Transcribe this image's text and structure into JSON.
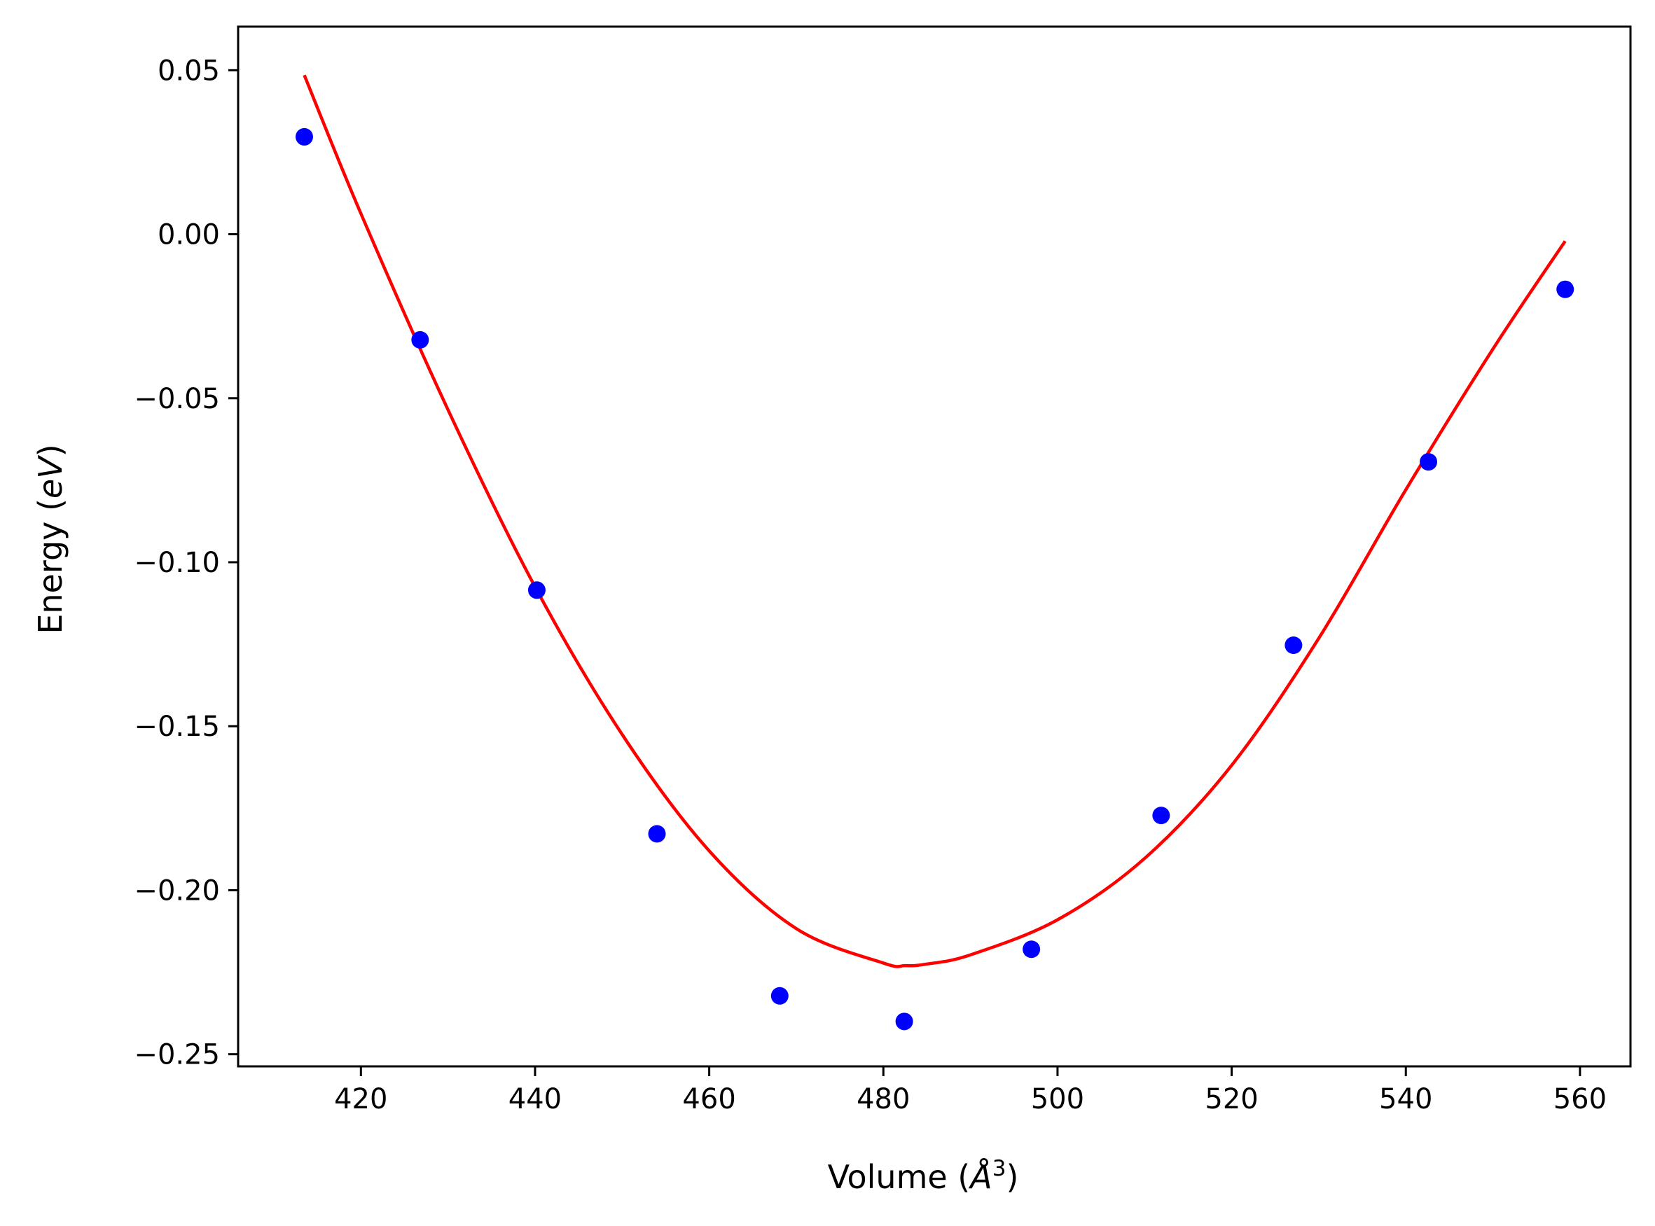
{
  "chart_data": {
    "type": "scatter",
    "title": "",
    "xlabel": {
      "prefix": "Volume (",
      "symbol": "Å",
      "superscript": "3",
      "suffix": ")"
    },
    "ylabel": {
      "prefix": "Energy (",
      "unit": "eV",
      "suffix": ")"
    },
    "xlim": [
      405.9,
      565.8
    ],
    "ylim": [
      -0.2537,
      0.0633
    ],
    "xticks": [
      420,
      440,
      460,
      480,
      500,
      520,
      540,
      560
    ],
    "xtick_labels": [
      "420",
      "440",
      "460",
      "480",
      "500",
      "520",
      "540",
      "560"
    ],
    "yticks": [
      0.05,
      0.0,
      -0.05,
      -0.1,
      -0.15,
      -0.2,
      -0.25
    ],
    "ytick_labels": [
      "0.05",
      "0.00",
      "−0.05",
      "−0.10",
      "−0.15",
      "−0.20",
      "−0.25"
    ],
    "grid": false,
    "series": [
      {
        "kind": "scatter",
        "color": "#0000ff",
        "x": [
          413.5,
          426.8,
          440.2,
          454.0,
          468.1,
          482.4,
          497.0,
          511.9,
          527.1,
          542.6,
          558.3
        ],
        "y": [
          0.0297,
          -0.0322,
          -0.1085,
          -0.1828,
          -0.2322,
          -0.24,
          -0.218,
          -0.1772,
          -0.1253,
          -0.0694,
          -0.0168
        ]
      },
      {
        "kind": "line",
        "color": "#ff0000",
        "x": [
          413.5,
          420,
          430,
          440,
          450,
          460,
          470,
          480,
          482.5,
          485,
          490,
          500,
          510,
          520,
          530,
          540,
          550,
          558.3
        ],
        "y": [
          0.0485,
          0.0063,
          -0.0535,
          -0.1075,
          -0.1525,
          -0.188,
          -0.2117,
          -0.2222,
          -0.223,
          -0.2225,
          -0.2197,
          -0.209,
          -0.1903,
          -0.1619,
          -0.1232,
          -0.0779,
          -0.035,
          -0.0021
        ]
      }
    ]
  }
}
